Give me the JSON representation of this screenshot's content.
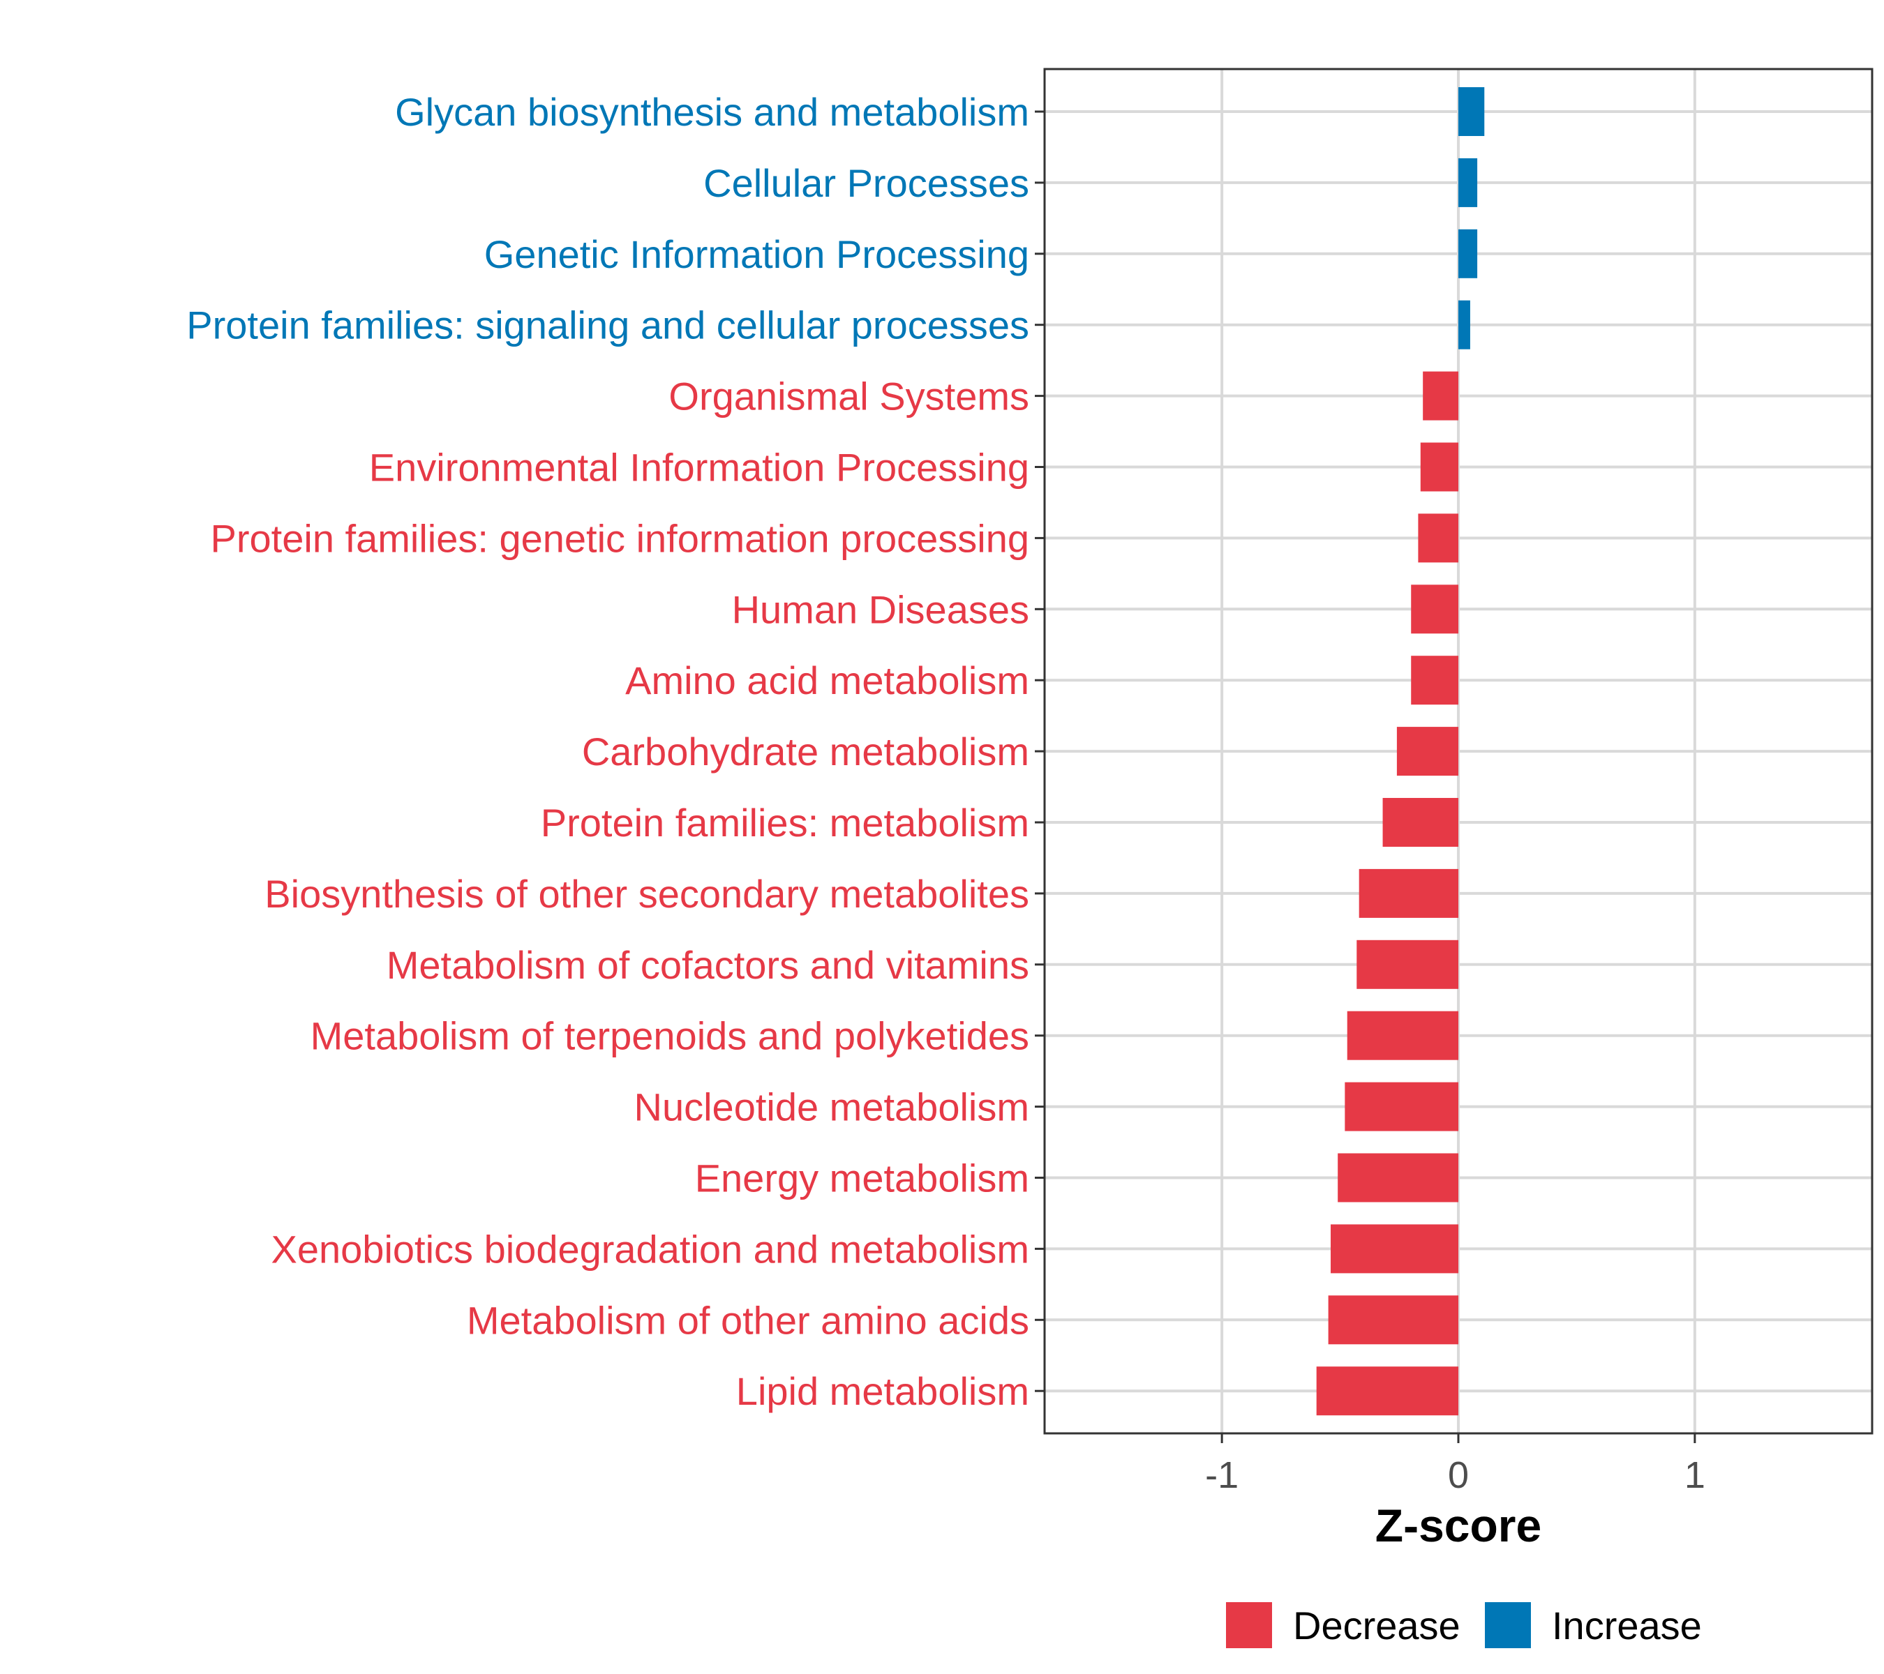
{
  "chart_data": {
    "type": "bar",
    "orientation": "horizontal",
    "xlabel": "Z-score",
    "ylabel": "",
    "xlim": [
      -1.75,
      1.75
    ],
    "xticks": [
      -1,
      0,
      1
    ],
    "xtick_labels": [
      "-1",
      "0",
      "1"
    ],
    "grid": true,
    "legend_position": "bottom",
    "legend": [
      {
        "name": "Decrease",
        "color": "#E63946"
      },
      {
        "name": "Increase",
        "color": "#0077B6"
      }
    ],
    "categories": [
      "Glycan biosynthesis and metabolism",
      "Cellular Processes",
      "Genetic Information Processing",
      "Protein families: signaling and cellular processes",
      "Organismal Systems",
      "Environmental Information Processing",
      "Protein families: genetic information processing",
      "Human Diseases",
      "Amino acid metabolism",
      "Carbohydrate metabolism",
      "Protein families: metabolism",
      "Biosynthesis of other secondary metabolites",
      "Metabolism of cofactors and vitamins",
      "Metabolism of terpenoids and polyketides",
      "Nucleotide metabolism",
      "Energy metabolism",
      "Xenobiotics biodegradation and metabolism",
      "Metabolism of other amino acids",
      "Lipid metabolism"
    ],
    "values": [
      0.11,
      0.08,
      0.08,
      0.05,
      -0.15,
      -0.16,
      -0.17,
      -0.2,
      -0.2,
      -0.26,
      -0.32,
      -0.42,
      -0.43,
      -0.47,
      -0.48,
      -0.51,
      -0.54,
      -0.55,
      -0.6
    ],
    "directions": [
      "Increase",
      "Increase",
      "Increase",
      "Increase",
      "Decrease",
      "Decrease",
      "Decrease",
      "Decrease",
      "Decrease",
      "Decrease",
      "Decrease",
      "Decrease",
      "Decrease",
      "Decrease",
      "Decrease",
      "Decrease",
      "Decrease",
      "Decrease",
      "Decrease"
    ]
  }
}
